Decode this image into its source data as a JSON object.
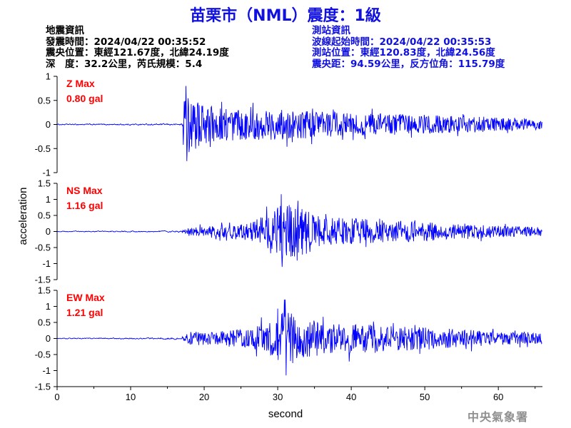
{
  "title": "苗栗市（NML）震度：1級",
  "quake_info": {
    "heading": "地震資訊",
    "time": "發震時間：2024/04/22 00:35:52",
    "location": "震央位置：東經121.67度，北緯24.19度",
    "depth_magnitude": "深　度：32.2公里，芮氏規模：5.4"
  },
  "station_info": {
    "heading": "測站資訊",
    "wave_start": "波線起始時間：2024/04/22 00:35:53",
    "location": "測站位置：東經120.83度，北緯24.56度",
    "distance": "震央距：94.59公里，反方位角：115.79度"
  },
  "watermark": "中央氣象署",
  "colors": {
    "title": "#1010e0",
    "waveform": "#0000ff",
    "max_label": "#ff0000"
  },
  "chart_data": {
    "type": "line",
    "xlabel": "second",
    "ylabel": "acceleration",
    "xlim": [
      0,
      66
    ],
    "xticks": [
      0,
      10,
      20,
      30,
      40,
      50,
      60
    ],
    "grid": false,
    "panels": [
      {
        "name": "Z",
        "max_label": "Z Max",
        "max_value": "0.80 gal",
        "ylim": [
          -1,
          1
        ],
        "yticks": [
          -1,
          -0.5,
          0,
          0.5,
          1
        ],
        "ytick_labels": [
          "-1",
          "-0.5",
          "0",
          "0.5",
          "1"
        ],
        "onset_s": 17.0,
        "noise": 0.02,
        "peak_s": 17.5,
        "peak": 0.8,
        "envelope": [
          [
            0,
            0.02
          ],
          [
            16.9,
            0.03
          ],
          [
            17.2,
            0.55
          ],
          [
            18,
            0.6
          ],
          [
            20,
            0.4
          ],
          [
            25,
            0.32
          ],
          [
            30,
            0.32
          ],
          [
            35,
            0.28
          ],
          [
            40,
            0.24
          ],
          [
            45,
            0.22
          ],
          [
            50,
            0.2
          ],
          [
            55,
            0.18
          ],
          [
            60,
            0.14
          ],
          [
            66,
            0.1
          ]
        ]
      },
      {
        "name": "NS",
        "max_label": "NS Max",
        "max_value": "1.16 gal",
        "ylim": [
          -1.5,
          1.5
        ],
        "yticks": [
          -1.5,
          -1,
          -0.5,
          0,
          0.5,
          1,
          1.5
        ],
        "ytick_labels": [
          "-1.5",
          "-1",
          "-0.5",
          "0",
          "0.5",
          "1",
          "1.5"
        ],
        "onset_s": 17.0,
        "noise": 0.02,
        "peak_s": 30.5,
        "peak": 1.16,
        "envelope": [
          [
            0,
            0.02
          ],
          [
            17,
            0.04
          ],
          [
            18,
            0.12
          ],
          [
            22,
            0.18
          ],
          [
            26,
            0.25
          ],
          [
            29,
            0.6
          ],
          [
            31,
            0.95
          ],
          [
            33,
            0.8
          ],
          [
            36,
            0.45
          ],
          [
            40,
            0.42
          ],
          [
            45,
            0.35
          ],
          [
            50,
            0.3
          ],
          [
            55,
            0.22
          ],
          [
            60,
            0.18
          ],
          [
            66,
            0.14
          ]
        ]
      },
      {
        "name": "EW",
        "max_label": "EW Max",
        "max_value": "1.21 gal",
        "ylim": [
          -1.5,
          1.5
        ],
        "yticks": [
          -1.5,
          -1,
          -0.5,
          0,
          0.5,
          1,
          1.5
        ],
        "ytick_labels": [
          "-1.5",
          "-1",
          "-0.5",
          "0",
          "0.5",
          "1",
          "1.5"
        ],
        "onset_s": 17.0,
        "noise": 0.02,
        "peak_s": 31.0,
        "peak": 1.21,
        "envelope": [
          [
            0,
            0.02
          ],
          [
            17,
            0.05
          ],
          [
            18,
            0.2
          ],
          [
            22,
            0.22
          ],
          [
            26,
            0.3
          ],
          [
            29,
            0.55
          ],
          [
            31,
            0.85
          ],
          [
            33,
            0.7
          ],
          [
            36,
            0.5
          ],
          [
            40,
            0.45
          ],
          [
            45,
            0.4
          ],
          [
            50,
            0.35
          ],
          [
            55,
            0.28
          ],
          [
            60,
            0.2
          ],
          [
            66,
            0.16
          ]
        ]
      }
    ]
  }
}
